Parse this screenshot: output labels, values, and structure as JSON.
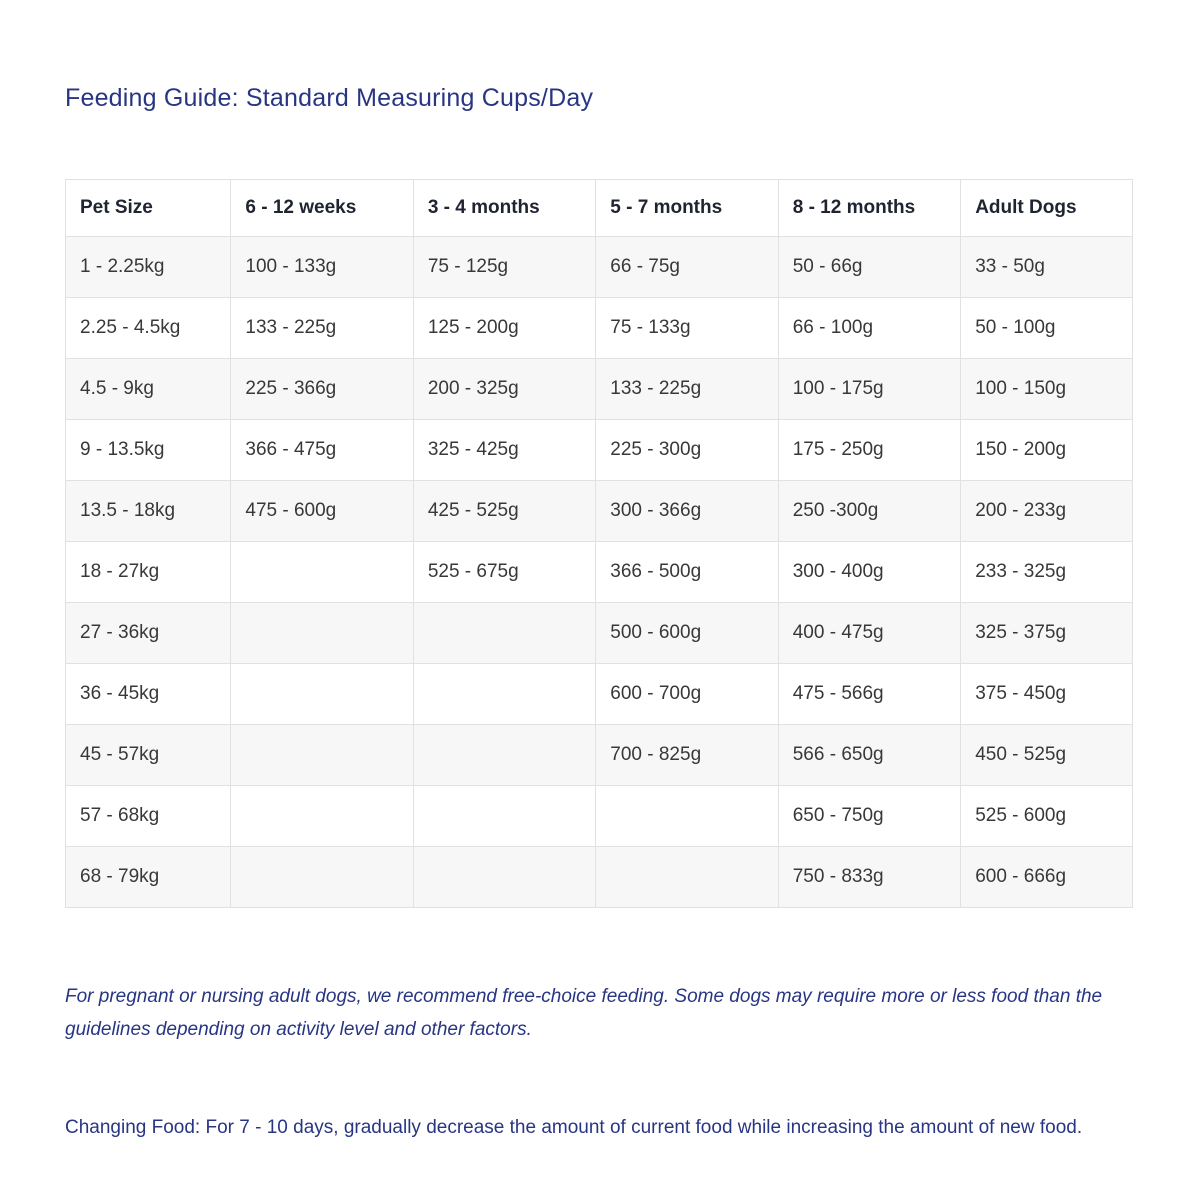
{
  "page": {
    "title": "Feeding Guide: Standard Measuring Cups/Day"
  },
  "table": {
    "columns": [
      "Pet Size",
      "6 - 12 weeks",
      "3 - 4 months",
      "5 - 7 months",
      "8 - 12 months",
      "Adult Dogs"
    ],
    "rows": [
      [
        "1 - 2.25kg",
        "100 - 133g",
        "75 - 125g",
        "66 - 75g",
        "50 - 66g",
        "33 - 50g"
      ],
      [
        "2.25 - 4.5kg",
        "133 - 225g",
        "125 - 200g",
        "75 - 133g",
        "66 - 100g",
        "50 - 100g"
      ],
      [
        "4.5 - 9kg",
        "225 - 366g",
        "200 - 325g",
        "133 - 225g",
        "100 - 175g",
        "100 - 150g"
      ],
      [
        "9 - 13.5kg",
        "366 - 475g",
        "325 - 425g",
        "225 - 300g",
        "175 - 250g",
        "150 - 200g"
      ],
      [
        "13.5 - 18kg",
        "475 - 600g",
        "425 - 525g",
        "300 - 366g",
        "250 -300g",
        "200 - 233g"
      ],
      [
        "18 - 27kg",
        "",
        "525 - 675g",
        "366 - 500g",
        "300 - 400g",
        "233 - 325g"
      ],
      [
        "27 - 36kg",
        "",
        "",
        "500 - 600g",
        "400 - 475g",
        "325 - 375g"
      ],
      [
        "36 - 45kg",
        "",
        "",
        "600 - 700g",
        "475 - 566g",
        "375 - 450g"
      ],
      [
        "45 - 57kg",
        "",
        "",
        "700 - 825g",
        "566 - 650g",
        "450 - 525g"
      ],
      [
        "57 - 68kg",
        "",
        "",
        "",
        "650 - 750g",
        "525 - 600g"
      ],
      [
        "68 - 79kg",
        "",
        "",
        "",
        "750 - 833g",
        "600 - 666g"
      ]
    ]
  },
  "notes": {
    "pregnant": "For pregnant or nursing adult dogs, we recommend free-choice feeding. Some dogs may require more or less food than the guidelines depending on activity level and other factors.",
    "changing_food": "Changing Food: For 7 - 10 days, gradually decrease the amount of current food while increasing the amount of new food."
  },
  "colors": {
    "title_navy": "#283583",
    "header_text": "#1f2430",
    "cell_text": "#383838",
    "row_stripe": "#f7f7f7",
    "border": "#e1e1e1"
  }
}
